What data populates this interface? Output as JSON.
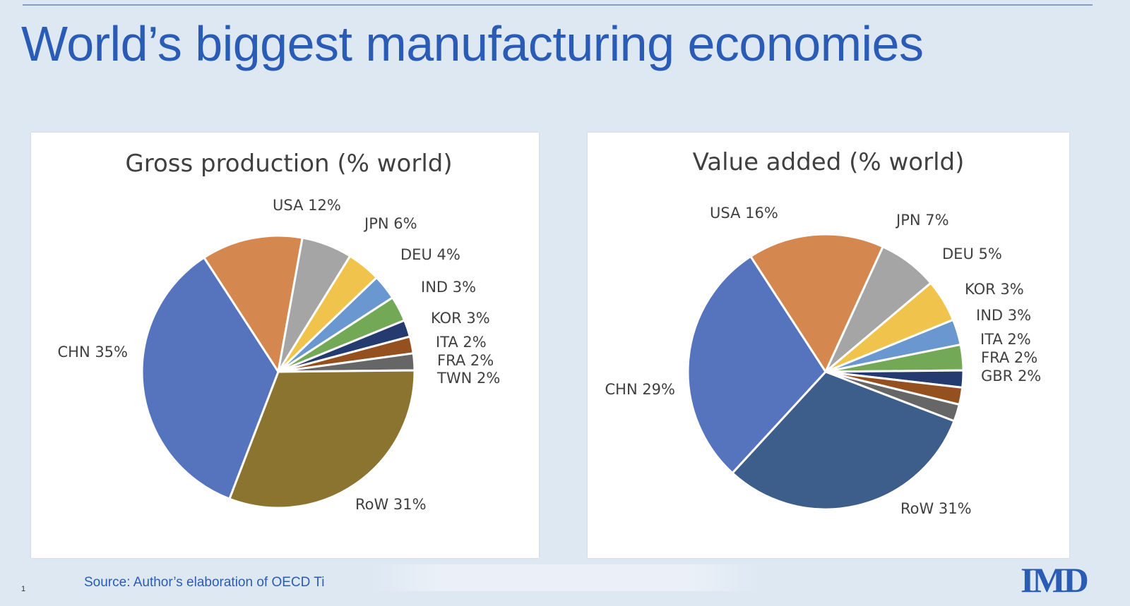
{
  "slide": {
    "title": "World’s biggest manufacturing economies",
    "source": "Source: Author’s elaboration of OECD   Ti",
    "slide_number": "1",
    "logo_text": "IMD"
  },
  "colors": {
    "background": "#dde8f3",
    "title": "#2a5bb5",
    "panel": "#ffffff"
  },
  "chart_data": [
    {
      "type": "pie",
      "title": "Gross production  (% world)",
      "slices": [
        {
          "label": "USA 12%",
          "value": 12,
          "color": "#d4874e"
        },
        {
          "label": "JPN 6%",
          "value": 6,
          "color": "#a5a5a5"
        },
        {
          "label": "DEU 4%",
          "value": 4,
          "color": "#f0c44c"
        },
        {
          "label": "IND 3%",
          "value": 3,
          "color": "#6b97d0"
        },
        {
          "label": "KOR 3%",
          "value": 3,
          "color": "#72a856"
        },
        {
          "label": "ITA 2%",
          "value": 2,
          "color": "#253b70"
        },
        {
          "label": "FRA 2%",
          "value": 2,
          "color": "#95501f"
        },
        {
          "label": "TWN 2%",
          "value": 2,
          "color": "#666666"
        },
        {
          "label": "RoW 31%",
          "value": 31,
          "color": "#8b7430"
        },
        {
          "label": "CHN 35%",
          "value": 35,
          "color": "#5673bd"
        }
      ]
    },
    {
      "type": "pie",
      "title": "Value added (% world)",
      "slices": [
        {
          "label": "USA 16%",
          "value": 16,
          "color": "#d4874e"
        },
        {
          "label": "JPN 7%",
          "value": 7,
          "color": "#a5a5a5"
        },
        {
          "label": "DEU 5%",
          "value": 5,
          "color": "#f0c44c"
        },
        {
          "label": "KOR 3%",
          "value": 3,
          "color": "#6b97d0"
        },
        {
          "label": "IND 3%",
          "value": 3,
          "color": "#72a856"
        },
        {
          "label": "ITA 2%",
          "value": 2,
          "color": "#253b70"
        },
        {
          "label": "FRA 2%",
          "value": 2,
          "color": "#95501f"
        },
        {
          "label": "GBR 2%",
          "value": 2,
          "color": "#666666"
        },
        {
          "label": "RoW 31%",
          "value": 31,
          "color": "#3d5d8a"
        },
        {
          "label": "CHN 29%",
          "value": 29,
          "color": "#5673bd"
        }
      ]
    }
  ]
}
